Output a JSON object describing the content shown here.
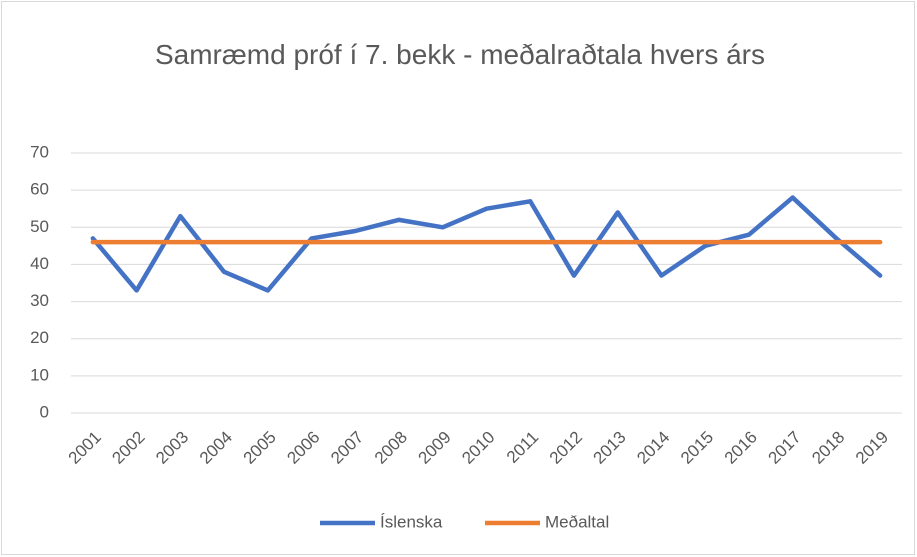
{
  "chart_data": {
    "type": "line",
    "title": "Samræmd próf í 7. bekk -  meðalraðtala hvers árs",
    "categories": [
      "2001",
      "2002",
      "2003",
      "2004",
      "2005",
      "2006",
      "2007",
      "2008",
      "2009",
      "2010",
      "2011",
      "2012",
      "2013",
      "2014",
      "2015",
      "2016",
      "2017",
      "2018",
      "2019"
    ],
    "series": [
      {
        "name": "Íslenska",
        "color": "#4472c4",
        "values": [
          47,
          33,
          53,
          38,
          33,
          47,
          49,
          52,
          50,
          55,
          57,
          37,
          54,
          37,
          45,
          48,
          58,
          47,
          37
        ]
      },
      {
        "name": "Meðaltal",
        "color": "#ed7d31",
        "values": [
          46,
          46,
          46,
          46,
          46,
          46,
          46,
          46,
          46,
          46,
          46,
          46,
          46,
          46,
          46,
          46,
          46,
          46,
          46
        ]
      }
    ],
    "ylim": [
      0,
      70
    ],
    "yticks": [
      0,
      10,
      20,
      30,
      40,
      50,
      60,
      70
    ],
    "grid": true,
    "legend": "bottom"
  }
}
